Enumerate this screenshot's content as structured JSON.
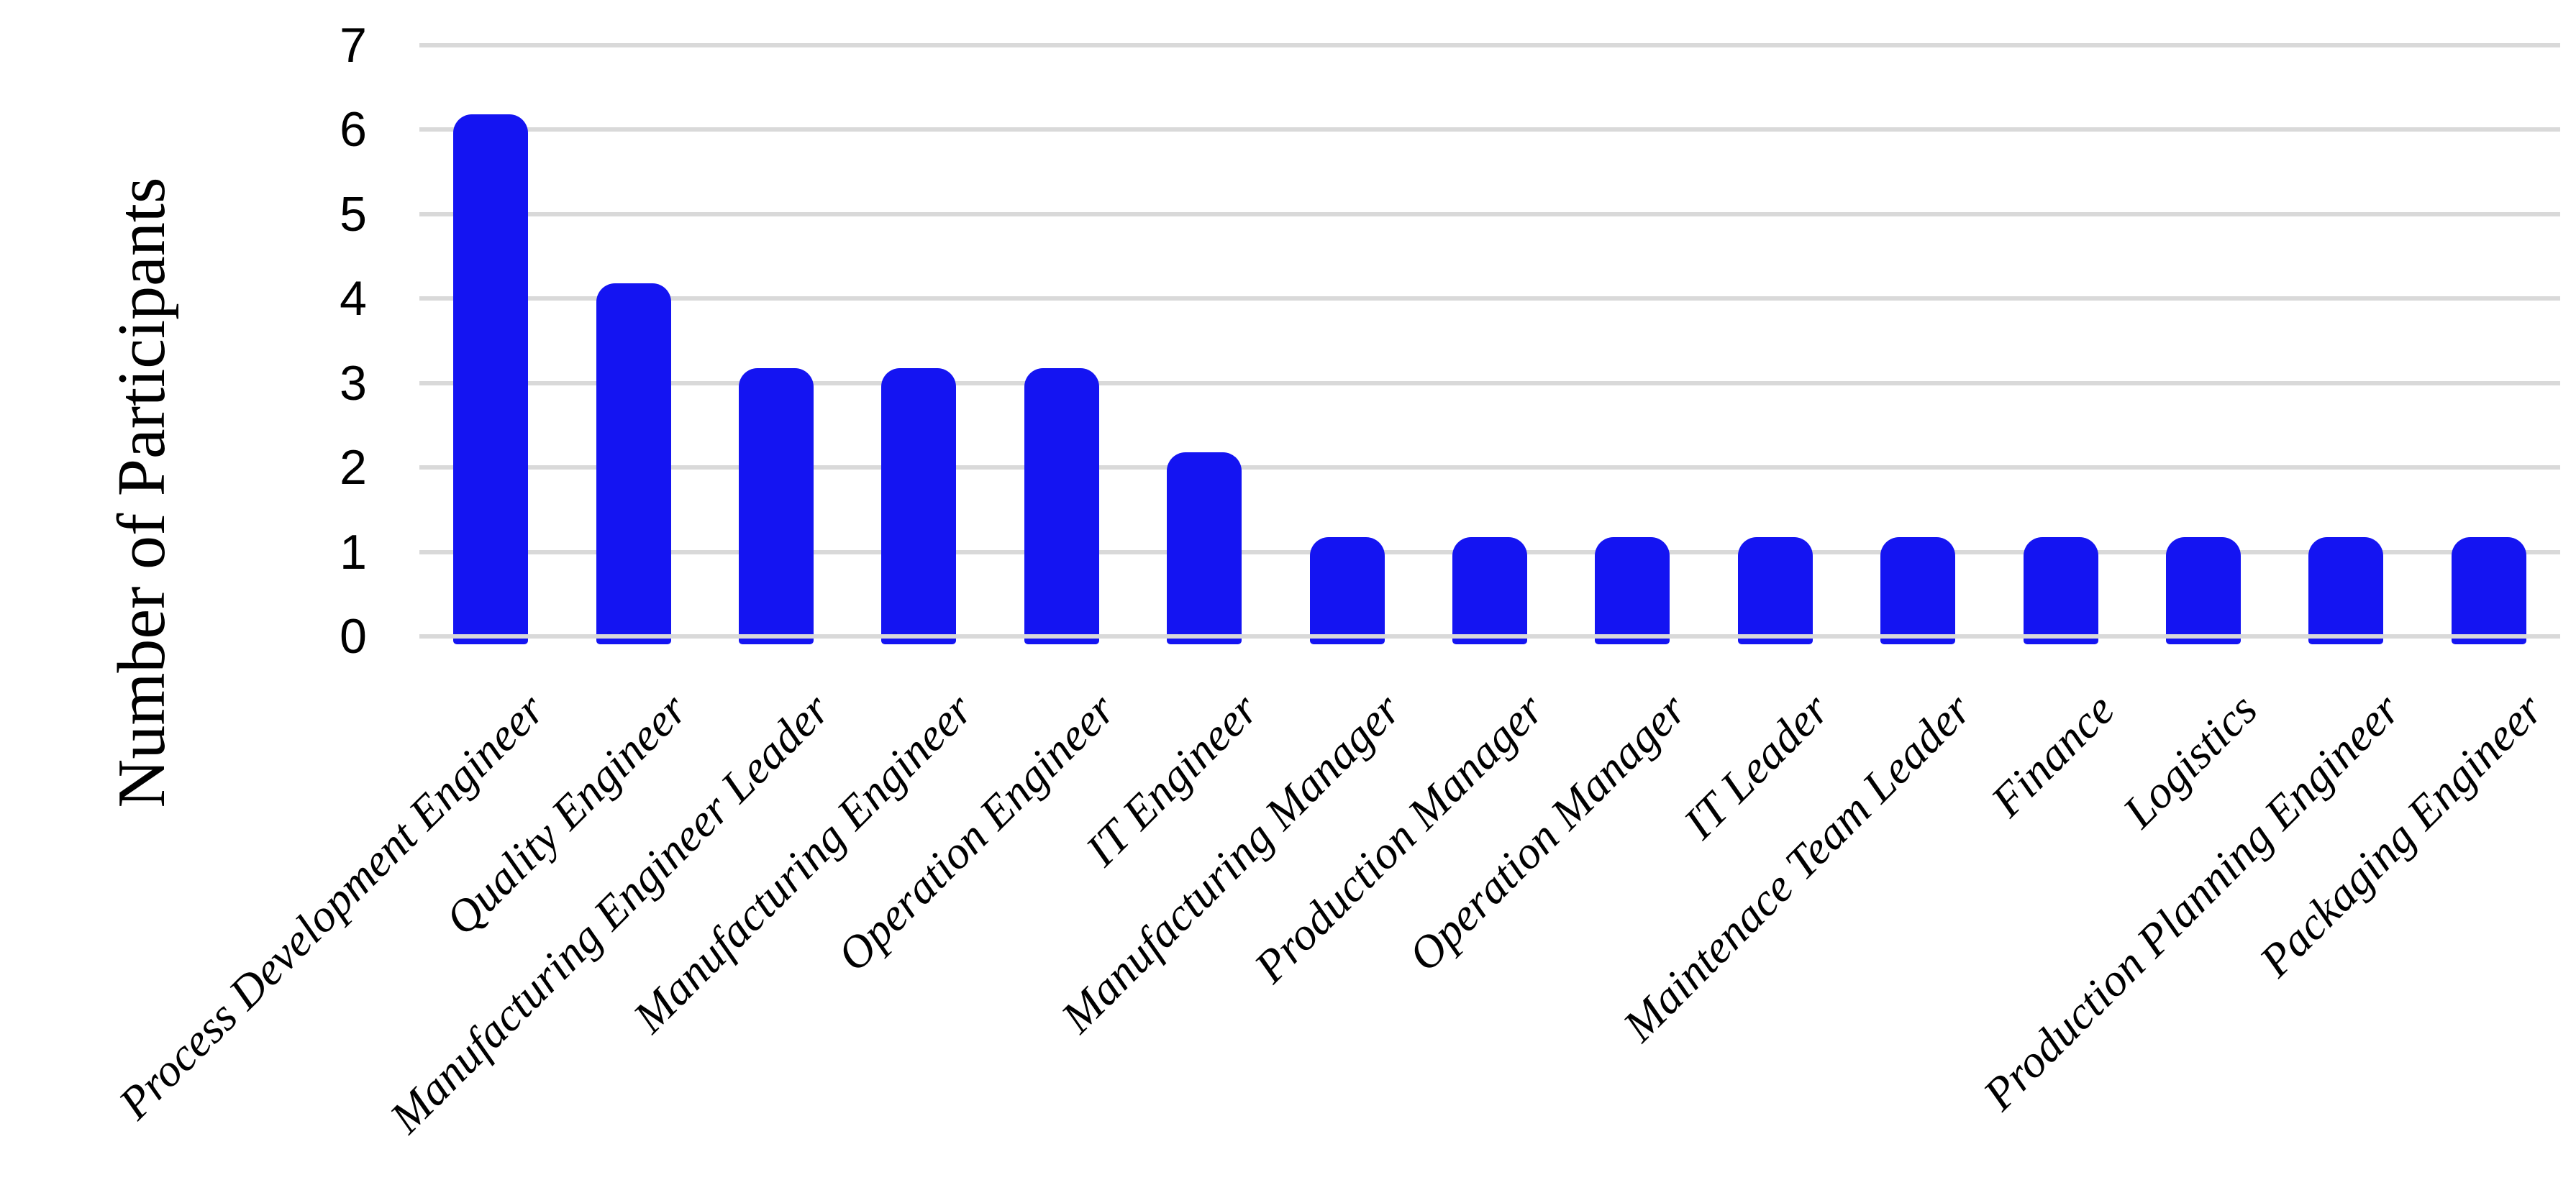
{
  "chart_data": {
    "type": "bar",
    "title": "",
    "xlabel": "",
    "ylabel": "Number of Participants",
    "categories": [
      "Process Development Engineer",
      "Quality Engineer",
      "Manufacturing Engineer Leader",
      "Manufacturing Engineer",
      "Operation Engineer",
      "IT Engineer",
      "Manufacturing Manager",
      "Production Manager",
      "Operation Manager",
      "IT Leader",
      "Maintenace Team Leader",
      "Finance",
      "Logistics",
      "Production Planning Engineer",
      "Packaging Engineer"
    ],
    "values": [
      6,
      4,
      3,
      3,
      3,
      2,
      1,
      1,
      1,
      1,
      1,
      1,
      1,
      1,
      1
    ],
    "ylim": [
      0,
      7
    ],
    "yticks": [
      "0",
      "1",
      "2",
      "3",
      "4",
      "5",
      "6",
      "7"
    ],
    "grid": "horizontal",
    "legend": "none",
    "colors": {
      "bar": "#1414f2",
      "gridline": "#d9d9d9",
      "text": "#000000",
      "background": "#ffffff"
    }
  }
}
